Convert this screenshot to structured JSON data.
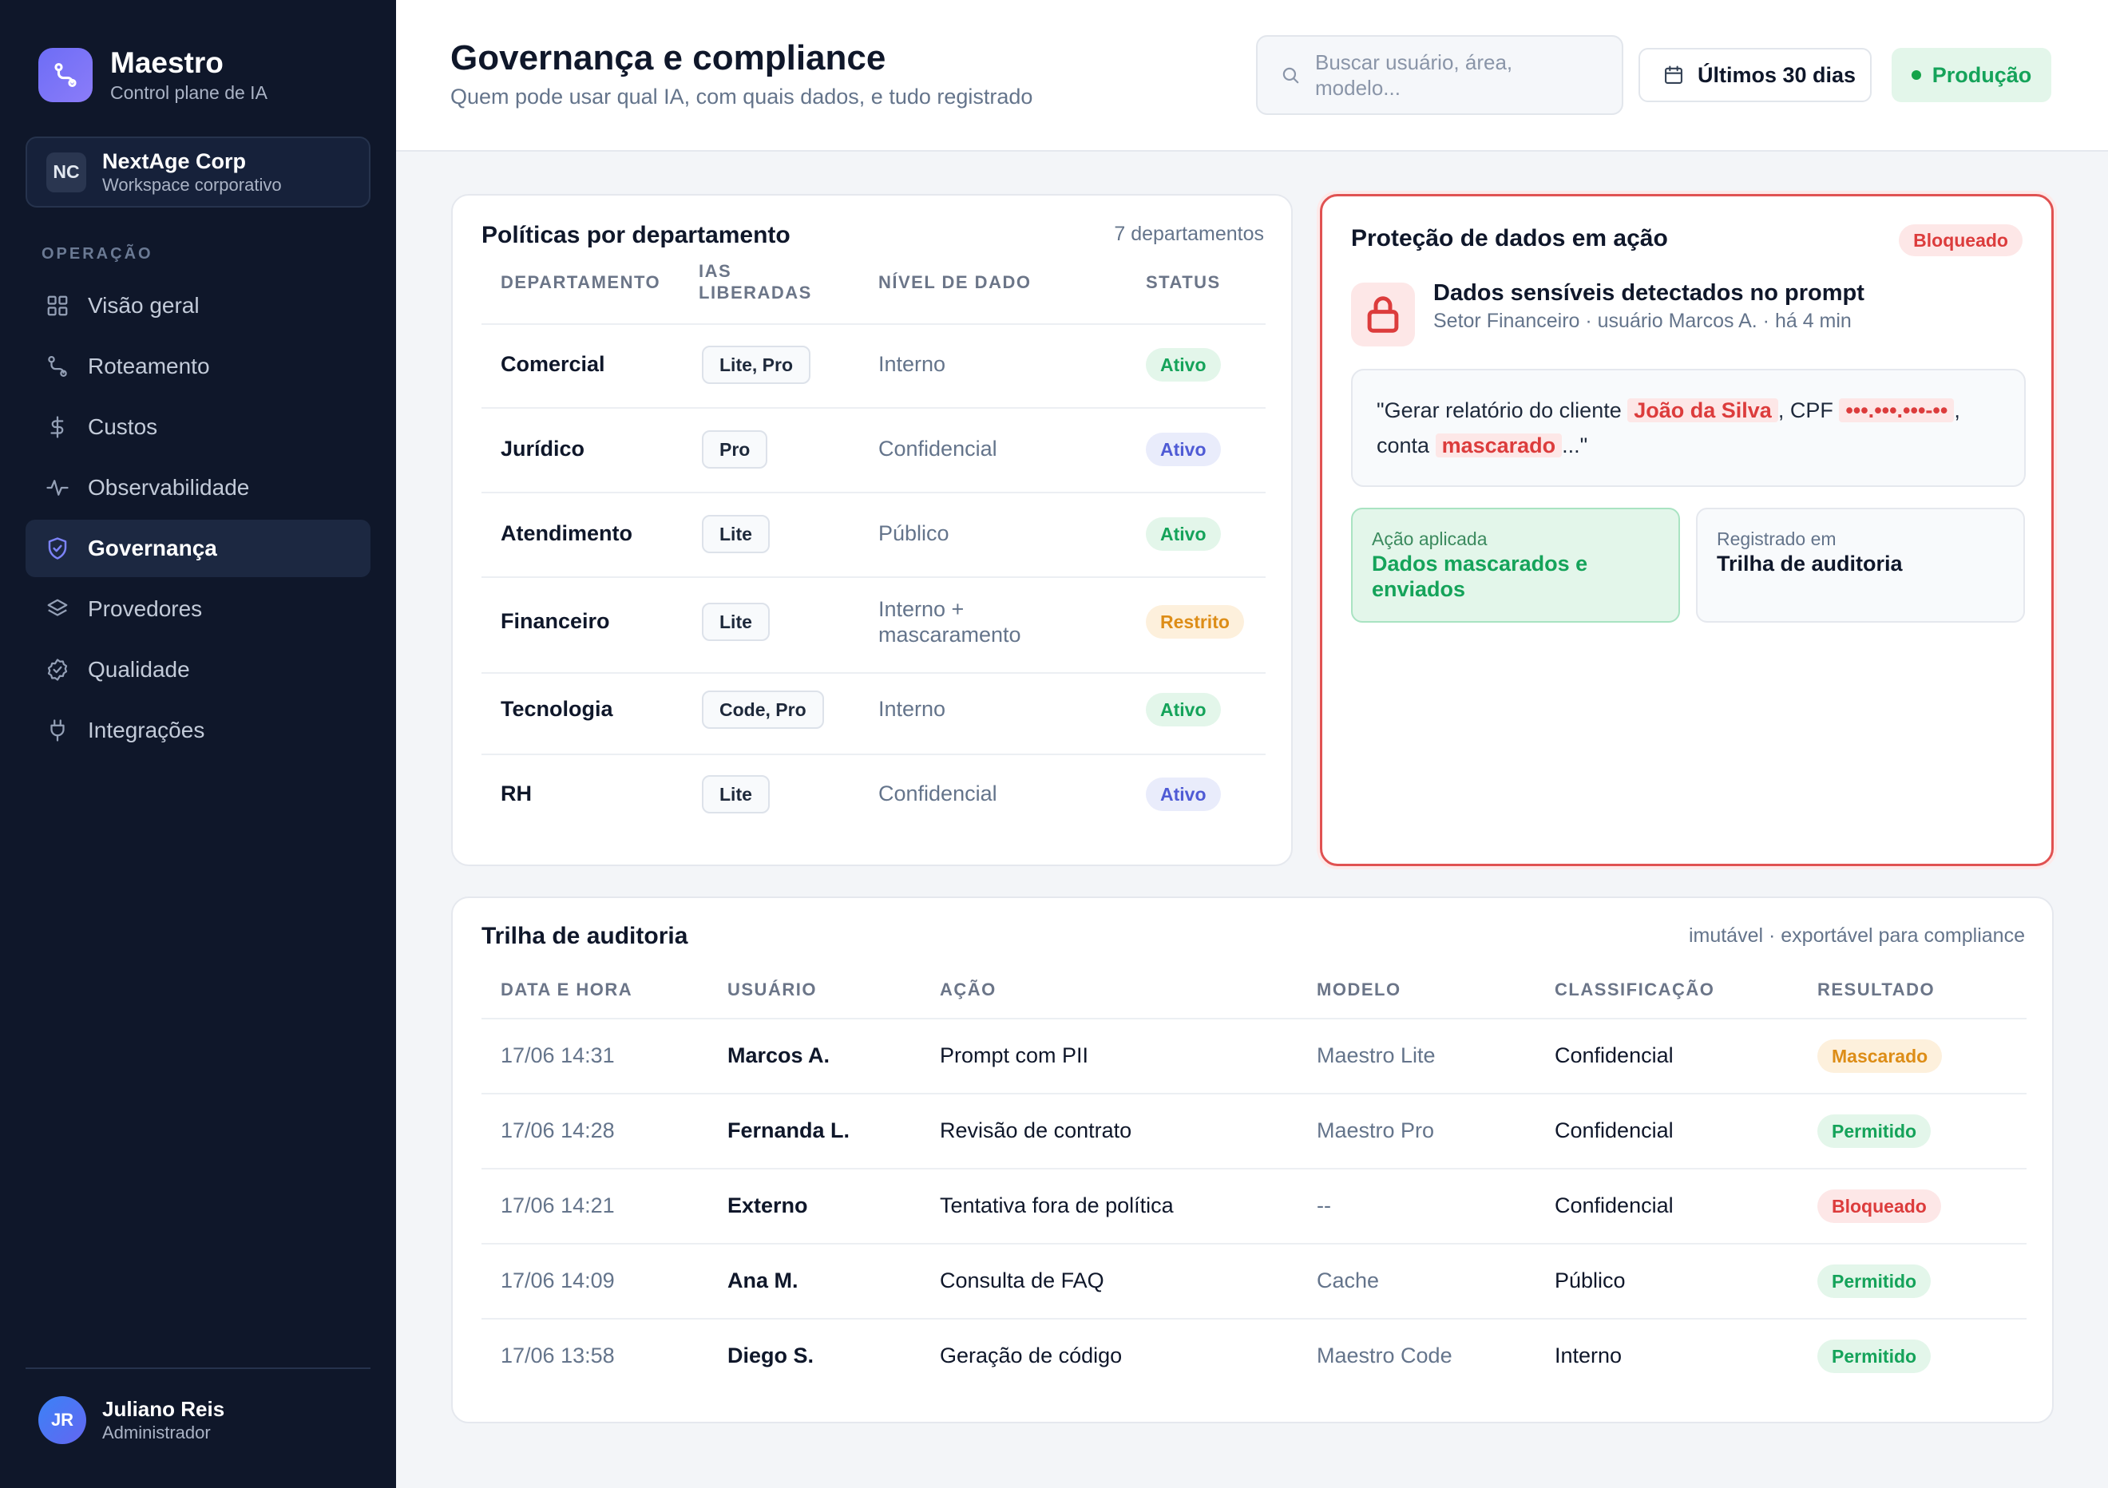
{
  "brand": {
    "name": "Maestro",
    "subtitle": "Control plane de IA"
  },
  "workspace": {
    "initials": "NC",
    "name": "NextAge Corp",
    "subtitle": "Workspace corporativo"
  },
  "sidebar": {
    "section_label": "OPERAÇÃO",
    "items": [
      {
        "label": "Visão geral",
        "icon": "grid-icon"
      },
      {
        "label": "Roteamento",
        "icon": "route-icon"
      },
      {
        "label": "Custos",
        "icon": "dollar-icon"
      },
      {
        "label": "Observabilidade",
        "icon": "activity-icon"
      },
      {
        "label": "Governança",
        "icon": "shield-icon",
        "active": true
      },
      {
        "label": "Provedores",
        "icon": "layers-icon"
      },
      {
        "label": "Qualidade",
        "icon": "badge-check-icon"
      },
      {
        "label": "Integrações",
        "icon": "plug-icon"
      }
    ]
  },
  "user": {
    "initials": "JR",
    "name": "Juliano Reis",
    "role": "Administrador"
  },
  "header": {
    "title": "Governança e compliance",
    "subtitle": "Quem pode usar qual IA, com quais dados, e tudo registrado",
    "search_placeholder": "Buscar usuário, área, modelo...",
    "date_range": "Últimos 30 dias",
    "environment": "Produção"
  },
  "policies": {
    "title": "Políticas por departamento",
    "meta": "7 departamentos",
    "columns": [
      "DEPARTAMENTO",
      "IAS LIBERADAS",
      "NÍVEL DE DADO",
      "STATUS"
    ],
    "rows": [
      {
        "dept": "Comercial",
        "models": "Lite, Pro",
        "level": "Interno",
        "status": "Ativo",
        "status_color": "green"
      },
      {
        "dept": "Jurídico",
        "models": "Pro",
        "level": "Confidencial",
        "status": "Ativo",
        "status_color": "blue"
      },
      {
        "dept": "Atendimento",
        "models": "Lite",
        "level": "Público",
        "status": "Ativo",
        "status_color": "green"
      },
      {
        "dept": "Financeiro",
        "models": "Lite",
        "level": "Interno + mascaramento",
        "status": "Restrito",
        "status_color": "amber"
      },
      {
        "dept": "Tecnologia",
        "models": "Code, Pro",
        "level": "Interno",
        "status": "Ativo",
        "status_color": "green"
      },
      {
        "dept": "RH",
        "models": "Lite",
        "level": "Confidencial",
        "status": "Ativo",
        "status_color": "blue"
      }
    ]
  },
  "protection": {
    "title": "Proteção de dados em ação",
    "badge": "Bloqueado",
    "event_title": "Dados sensíveis detectados no prompt",
    "event_meta": "Setor Financeiro · usuário Marcos A. · há 4 min",
    "prompt": {
      "prefix": "\"Gerar relatório do cliente ",
      "name": "João da Silva",
      "mid1": ", CPF ",
      "cpf": "•••.•••.•••-••",
      "mid2": ", conta ",
      "account": "mascarado",
      "suffix": "...\""
    },
    "action_label": "Ação aplicada",
    "action_value": "Dados mascarados e enviados",
    "log_label": "Registrado em",
    "log_value": "Trilha de auditoria"
  },
  "audit": {
    "title": "Trilha de auditoria",
    "meta": "imutável · exportável para compliance",
    "columns": [
      "DATA E HORA",
      "USUÁRIO",
      "AÇÃO",
      "MODELO",
      "CLASSIFICAÇÃO",
      "RESULTADO"
    ],
    "rows": [
      {
        "datetime": "17/06 14:31",
        "user": "Marcos A.",
        "action": "Prompt com PII",
        "model": "Maestro Lite",
        "class": "Confidencial",
        "result": "Mascarado",
        "result_color": "amber"
      },
      {
        "datetime": "17/06 14:28",
        "user": "Fernanda L.",
        "action": "Revisão de contrato",
        "model": "Maestro Pro",
        "class": "Confidencial",
        "result": "Permitido",
        "result_color": "green"
      },
      {
        "datetime": "17/06 14:21",
        "user": "Externo",
        "action": "Tentativa fora de política",
        "model": "--",
        "class": "Confidencial",
        "result": "Bloqueado",
        "result_color": "red"
      },
      {
        "datetime": "17/06 14:09",
        "user": "Ana M.",
        "action": "Consulta de FAQ",
        "model": "Cache",
        "class": "Público",
        "result": "Permitido",
        "result_color": "green"
      },
      {
        "datetime": "17/06 13:58",
        "user": "Diego S.",
        "action": "Geração de código",
        "model": "Maestro Code",
        "class": "Interno",
        "result": "Permitido",
        "result_color": "green"
      }
    ]
  },
  "colors": {
    "accent": "#6d6df6",
    "sidebar": "#0f172a",
    "success": "#15a35a",
    "danger": "#dc3c3c",
    "warning": "#dd8d17",
    "info": "#4f5bd5"
  }
}
